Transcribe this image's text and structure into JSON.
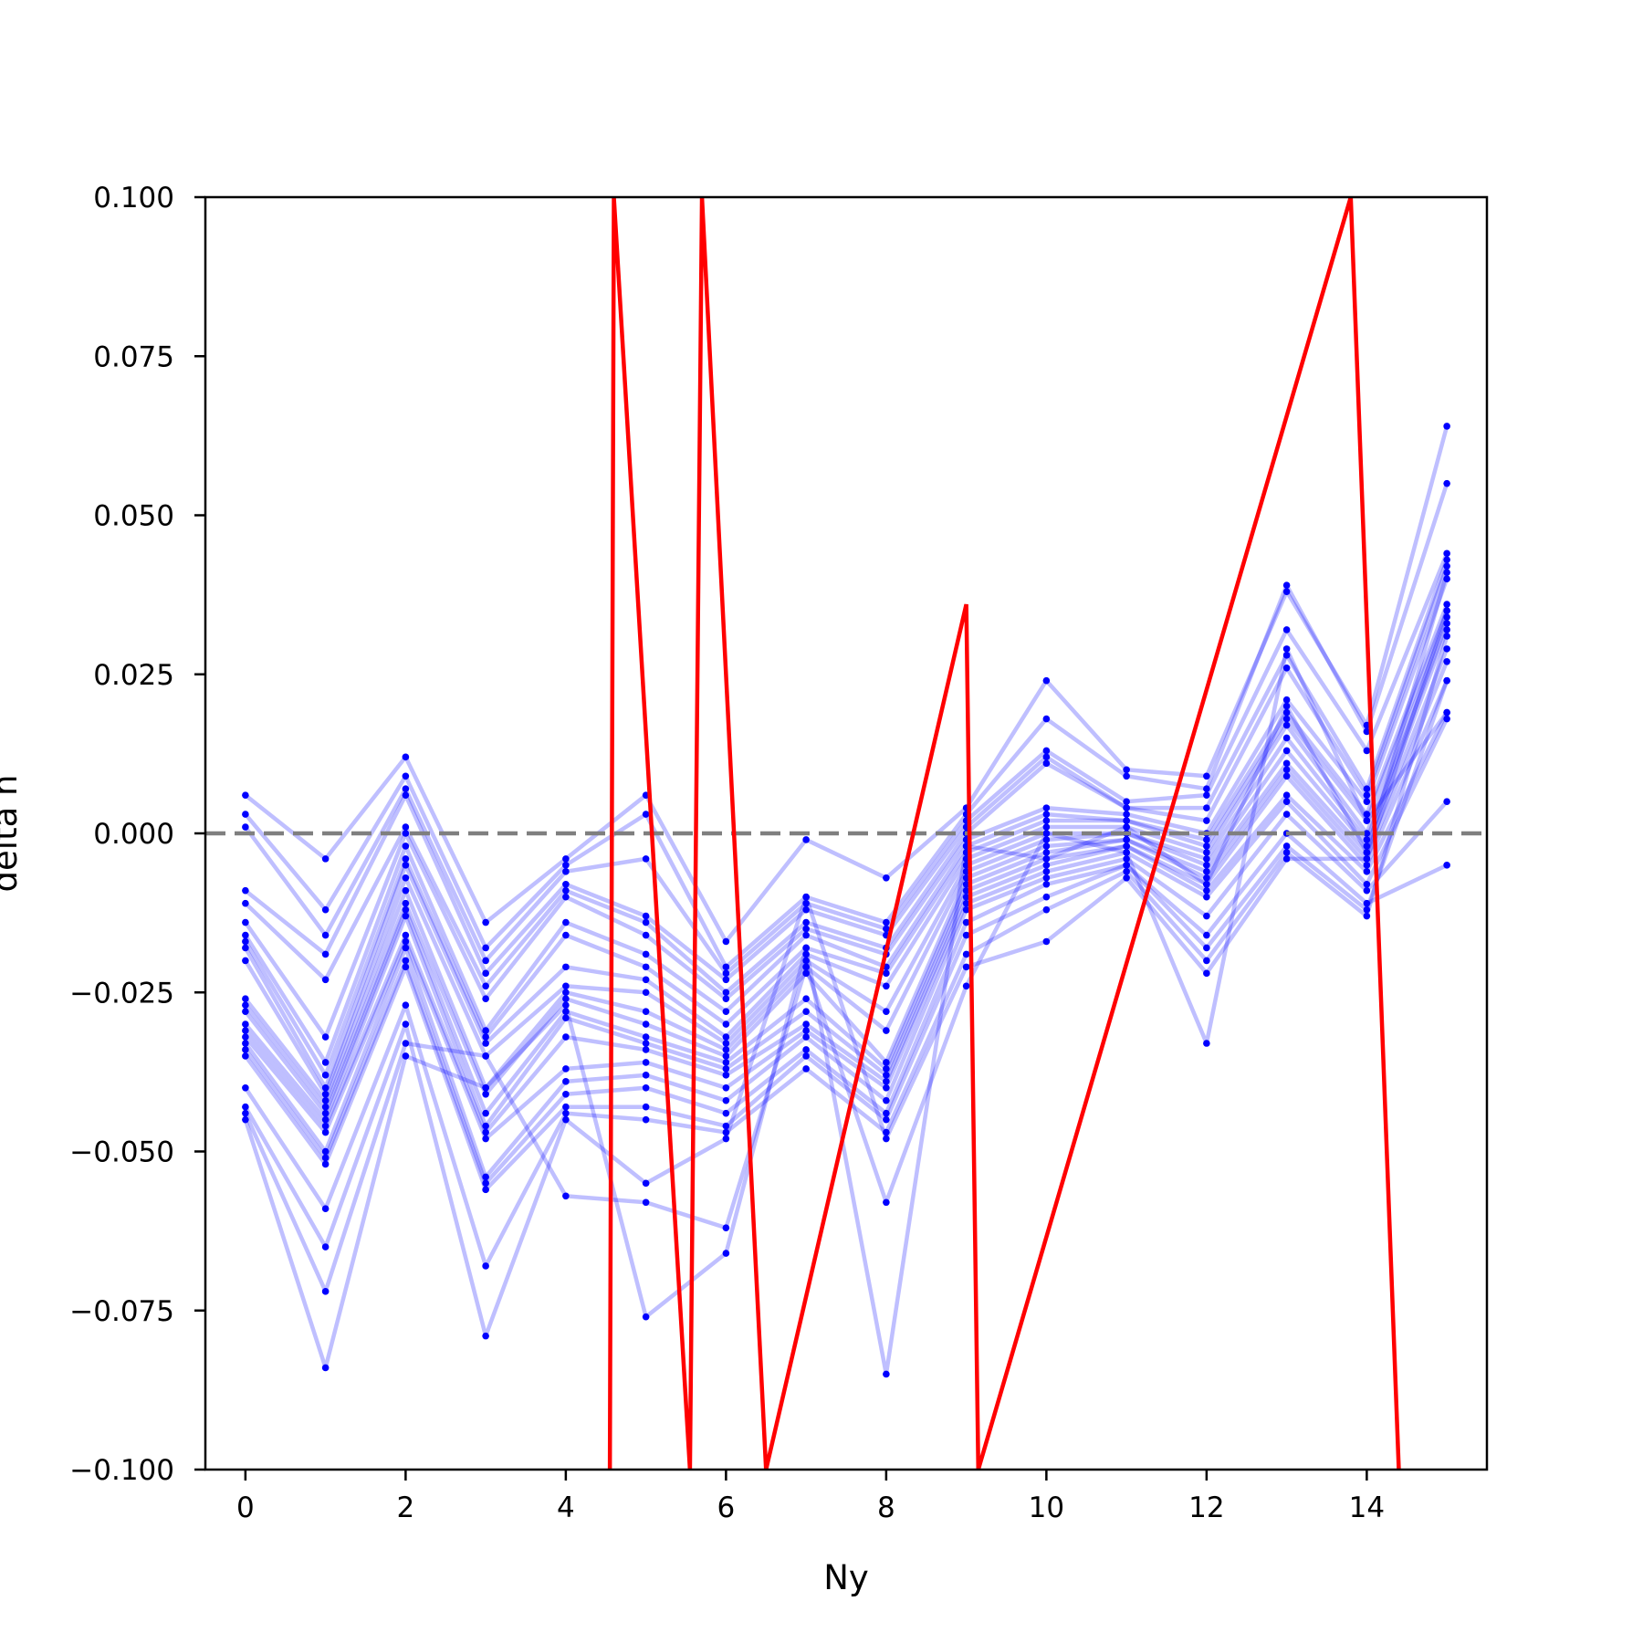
{
  "chart_data": {
    "type": "line",
    "xlabel": "Ny",
    "ylabel": "delta h",
    "xlim": [
      -0.5,
      15.5
    ],
    "ylim": [
      -0.1,
      0.1
    ],
    "x_ticks": [
      0,
      2,
      4,
      6,
      8,
      10,
      12,
      14
    ],
    "x_tick_labels": [
      "0",
      "2",
      "4",
      "6",
      "8",
      "10",
      "12",
      "14"
    ],
    "y_ticks": [
      0.1,
      0.075,
      0.05,
      0.025,
      0.0,
      -0.025,
      -0.05,
      -0.075,
      -0.1
    ],
    "y_tick_labels": [
      "0.100",
      "0.075",
      "0.050",
      "0.025",
      "0.000",
      "−0.025",
      "−0.050",
      "−0.075",
      "−0.100"
    ],
    "grid": false,
    "reference_line": {
      "y": 0.0,
      "style": "dashed",
      "color": "#7f7f7f"
    },
    "colors": {
      "samples": "#0000ff",
      "highlight": "#ff0000"
    },
    "x": [
      0,
      1,
      2,
      3,
      4,
      5,
      6,
      7,
      8,
      9,
      10,
      11,
      12,
      13,
      14,
      15
    ],
    "series": [
      {
        "values": [
          0.006,
          -0.004,
          0.012,
          -0.014,
          -0.004,
          0.006,
          -0.017,
          -0.001,
          -0.007,
          0.004,
          0.024,
          0.01,
          0.009,
          0.038,
          0.017,
          0.064
        ]
      },
      {
        "values": [
          0.003,
          -0.012,
          0.009,
          -0.018,
          -0.005,
          0.003,
          -0.021,
          -0.01,
          -0.014,
          0.003,
          0.018,
          0.009,
          0.007,
          0.039,
          0.016,
          0.055
        ]
      },
      {
        "values": [
          0.001,
          -0.016,
          0.007,
          -0.02,
          -0.006,
          -0.004,
          -0.022,
          -0.011,
          -0.015,
          0.002,
          0.013,
          0.005,
          0.006,
          0.032,
          0.013,
          0.044
        ]
      },
      {
        "values": [
          -0.009,
          -0.019,
          0.006,
          -0.022,
          -0.008,
          -0.013,
          -0.023,
          -0.012,
          -0.016,
          0.001,
          0.012,
          0.004,
          0.004,
          0.028,
          0.007,
          0.043
        ]
      },
      {
        "values": [
          -0.011,
          -0.023,
          0.001,
          -0.024,
          -0.009,
          -0.014,
          -0.025,
          -0.014,
          -0.018,
          0.0,
          0.011,
          0.004,
          0.002,
          0.026,
          0.006,
          0.042
        ]
      },
      {
        "values": [
          -0.014,
          -0.032,
          0.0,
          -0.026,
          -0.01,
          -0.016,
          -0.026,
          -0.015,
          -0.019,
          -0.001,
          0.004,
          0.003,
          0.0,
          0.021,
          0.005,
          0.04
        ]
      },
      {
        "values": [
          -0.016,
          -0.036,
          -0.002,
          -0.031,
          -0.014,
          -0.019,
          -0.028,
          -0.016,
          -0.021,
          -0.002,
          0.003,
          0.002,
          -0.001,
          0.019,
          0.003,
          0.036
        ]
      },
      {
        "values": [
          -0.017,
          -0.038,
          -0.004,
          -0.032,
          -0.016,
          -0.021,
          -0.03,
          -0.018,
          -0.022,
          -0.003,
          0.002,
          0.002,
          -0.002,
          0.018,
          0.002,
          0.035
        ]
      },
      {
        "values": [
          -0.018,
          -0.04,
          -0.005,
          -0.033,
          -0.021,
          -0.023,
          -0.032,
          -0.019,
          -0.024,
          -0.004,
          0.001,
          0.001,
          -0.003,
          0.017,
          0.0,
          0.034
        ]
      },
      {
        "values": [
          -0.02,
          -0.041,
          -0.007,
          -0.035,
          -0.024,
          -0.025,
          -0.033,
          -0.02,
          -0.028,
          -0.005,
          0.0,
          0.0,
          -0.004,
          0.015,
          -0.001,
          0.033
        ]
      },
      {
        "values": [
          -0.026,
          -0.042,
          -0.009,
          -0.04,
          -0.025,
          -0.028,
          -0.034,
          -0.021,
          -0.031,
          -0.006,
          -0.001,
          0.0,
          -0.005,
          0.013,
          -0.002,
          0.032
        ]
      },
      {
        "values": [
          -0.027,
          -0.043,
          -0.011,
          -0.041,
          -0.026,
          -0.03,
          -0.035,
          -0.022,
          -0.036,
          -0.007,
          -0.002,
          -0.001,
          -0.006,
          0.011,
          -0.003,
          0.029
        ]
      },
      {
        "values": [
          -0.028,
          -0.044,
          -0.012,
          -0.044,
          -0.028,
          -0.032,
          -0.036,
          -0.026,
          -0.037,
          -0.008,
          -0.003,
          -0.001,
          -0.007,
          0.01,
          -0.004,
          0.027
        ]
      },
      {
        "values": [
          -0.03,
          -0.045,
          -0.013,
          -0.046,
          -0.029,
          -0.033,
          -0.037,
          -0.028,
          -0.038,
          -0.009,
          -0.004,
          -0.002,
          -0.008,
          0.009,
          -0.005,
          0.024
        ]
      },
      {
        "values": [
          -0.031,
          -0.046,
          -0.016,
          -0.047,
          -0.032,
          -0.034,
          -0.038,
          -0.03,
          -0.039,
          -0.01,
          -0.005,
          -0.002,
          -0.009,
          0.006,
          -0.006,
          0.019
        ]
      },
      {
        "values": [
          -0.032,
          -0.047,
          -0.017,
          -0.048,
          -0.037,
          -0.036,
          -0.04,
          -0.031,
          -0.04,
          -0.011,
          -0.006,
          -0.003,
          -0.01,
          0.005,
          -0.008,
          0.018
        ]
      },
      {
        "values": [
          -0.033,
          -0.05,
          -0.018,
          -0.054,
          -0.039,
          -0.038,
          -0.042,
          -0.032,
          -0.042,
          -0.012,
          -0.007,
          -0.004,
          -0.013,
          0.003,
          -0.009,
          0.005
        ]
      },
      {
        "values": [
          -0.034,
          -0.051,
          -0.02,
          -0.055,
          -0.041,
          -0.04,
          -0.044,
          -0.034,
          -0.044,
          -0.014,
          -0.008,
          -0.005,
          -0.016,
          0.0,
          -0.011,
          -0.005
        ]
      },
      {
        "values": [
          -0.035,
          -0.052,
          -0.021,
          -0.056,
          -0.043,
          -0.043,
          -0.046,
          -0.035,
          -0.045,
          -0.016,
          -0.01,
          -0.005,
          -0.018,
          -0.002,
          -0.012,
          0.024
        ]
      },
      {
        "values": [
          -0.04,
          -0.059,
          -0.027,
          -0.068,
          -0.044,
          -0.045,
          -0.047,
          -0.037,
          -0.047,
          -0.019,
          -0.012,
          -0.006,
          -0.02,
          -0.003,
          -0.013,
          0.031
        ]
      },
      {
        "values": [
          -0.043,
          -0.065,
          -0.03,
          -0.079,
          -0.045,
          -0.055,
          -0.048,
          -0.01,
          -0.048,
          -0.021,
          -0.017,
          -0.007,
          -0.022,
          -0.004,
          -0.004,
          0.035
        ]
      },
      {
        "values": [
          -0.044,
          -0.072,
          -0.033,
          -0.035,
          -0.057,
          -0.058,
          -0.062,
          -0.021,
          -0.058,
          -0.024,
          0.0,
          -0.003,
          -0.033,
          0.029,
          0.002,
          0.019
        ]
      },
      {
        "values": [
          -0.045,
          -0.084,
          -0.035,
          -0.04,
          -0.027,
          -0.076,
          -0.066,
          -0.018,
          -0.085,
          -0.002,
          -0.004,
          0.001,
          -0.008,
          0.02,
          -0.003,
          0.041
        ]
      }
    ],
    "highlight_series": {
      "values": [
        -0.1,
        0.1,
        -0.1,
        0.1,
        -0.1,
        0.036,
        -0.1,
        0.1,
        -0.1
      ],
      "x": [
        4.55,
        4.6,
        5.55,
        5.7,
        6.5,
        9.0,
        9.15,
        13.8,
        14.4
      ]
    }
  }
}
